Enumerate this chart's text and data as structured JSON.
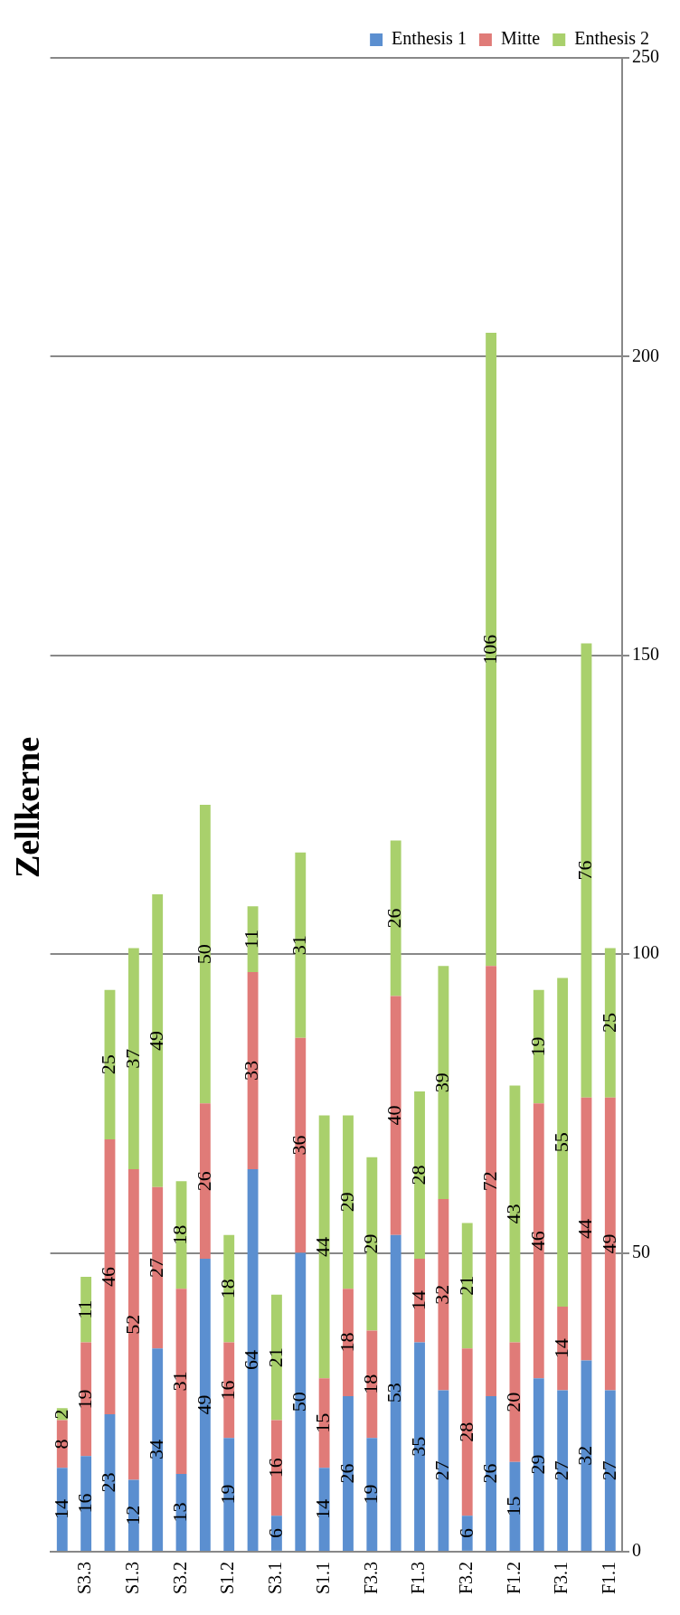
{
  "chart_data": {
    "type": "bar",
    "stacked": true,
    "title": "Zellkerne",
    "categories": [
      null,
      "S3.3",
      null,
      "S1.3",
      null,
      "S3.2",
      null,
      "S1.2",
      null,
      "S3.1",
      null,
      "S1.1",
      null,
      "F3.3",
      null,
      "F1.3",
      null,
      "F3.2",
      null,
      "F1.2",
      null,
      "F3.1",
      null,
      "F1.1"
    ],
    "series": [
      {
        "name": "Enthesis 1",
        "color": "#5b8fd0",
        "values": [
          14,
          16,
          23,
          12,
          34,
          13,
          49,
          19,
          64,
          6,
          50,
          14,
          26,
          19,
          53,
          35,
          27,
          6,
          26,
          15,
          29,
          27,
          32,
          27
        ]
      },
      {
        "name": "Mitte",
        "color": "#e07b78",
        "values": [
          8,
          19,
          46,
          52,
          27,
          31,
          26,
          16,
          33,
          16,
          36,
          15,
          18,
          18,
          40,
          14,
          32,
          28,
          72,
          20,
          46,
          14,
          44,
          49
        ]
      },
      {
        "name": "Enthesis 2",
        "color": "#a9d06c",
        "values": [
          2,
          11,
          25,
          37,
          49,
          18,
          50,
          18,
          11,
          21,
          31,
          44,
          29,
          29,
          26,
          28,
          39,
          21,
          106,
          43,
          19,
          55,
          76,
          25
        ]
      }
    ],
    "ylim": [
      0,
      250
    ],
    "yticks": [
      0,
      50,
      100,
      150,
      200,
      250
    ],
    "grid": "y",
    "legend": "top right",
    "data_labels": true
  }
}
